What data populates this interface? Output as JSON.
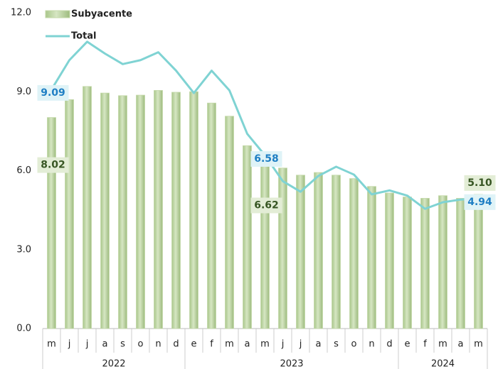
{
  "chart_data": {
    "type": "bar_line",
    "categories": [
      "m",
      "j",
      "j",
      "a",
      "s",
      "o",
      "n",
      "d",
      "e",
      "f",
      "m",
      "a",
      "m",
      "j",
      "j",
      "a",
      "s",
      "o",
      "n",
      "d",
      "e",
      "f",
      "m",
      "a",
      "m"
    ],
    "x_groups": [
      {
        "label": "2022",
        "count": 8
      },
      {
        "label": "2023",
        "count": 12
      },
      {
        "label": "2024",
        "count": 5
      }
    ],
    "series": [
      {
        "name": "Subyacente",
        "type": "bar",
        "color": "#c4d9a9",
        "values": [
          8.02,
          8.7,
          9.2,
          8.95,
          8.85,
          8.87,
          9.05,
          8.98,
          9.0,
          8.57,
          8.07,
          6.95,
          6.62,
          6.1,
          5.83,
          5.93,
          5.83,
          5.7,
          5.4,
          5.15,
          5.0,
          4.95,
          5.05,
          4.95,
          5.1
        ],
        "value_labels": [
          "8.02",
          null,
          null,
          null,
          null,
          null,
          null,
          null,
          null,
          null,
          null,
          null,
          "6.62",
          null,
          null,
          null,
          null,
          null,
          null,
          null,
          null,
          null,
          null,
          null,
          "5.10"
        ]
      },
      {
        "name": "Total",
        "type": "line",
        "color": "#7fd3d3",
        "values": [
          9.09,
          10.2,
          10.9,
          10.45,
          10.05,
          10.2,
          10.5,
          9.8,
          8.95,
          9.8,
          9.05,
          7.4,
          6.58,
          5.6,
          5.2,
          5.8,
          6.15,
          5.85,
          5.1,
          5.25,
          5.05,
          4.55,
          4.8,
          4.9,
          4.94
        ],
        "value_labels": [
          "9.09",
          null,
          null,
          null,
          null,
          null,
          null,
          null,
          null,
          null,
          null,
          null,
          "6.58",
          null,
          null,
          null,
          null,
          null,
          null,
          null,
          null,
          null,
          null,
          null,
          "4.94"
        ]
      }
    ],
    "ylim": [
      0,
      12
    ],
    "yticks": [
      {
        "value": 0,
        "label": "0.0"
      },
      {
        "value": 3,
        "label": "3.0"
      },
      {
        "value": 6,
        "label": "6.0"
      },
      {
        "value": 9,
        "label": "9.0"
      },
      {
        "value": 12,
        "label": "12.0"
      }
    ]
  }
}
